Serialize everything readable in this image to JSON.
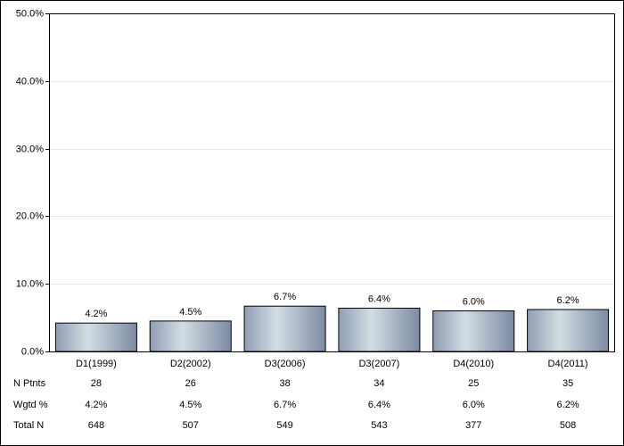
{
  "chart_data": {
    "type": "bar",
    "categories": [
      "D1(1999)",
      "D2(2002)",
      "D3(2006)",
      "D3(2007)",
      "D4(2010)",
      "D4(2011)"
    ],
    "values": [
      4.2,
      4.5,
      6.7,
      6.4,
      6.0,
      6.2
    ],
    "value_labels": [
      "4.2%",
      "4.5%",
      "6.7%",
      "6.4%",
      "6.0%",
      "6.2%"
    ],
    "ylim": [
      0,
      50
    ],
    "yticks": [
      {
        "value": 0,
        "label": "0.0%"
      },
      {
        "value": 10,
        "label": "10.0%"
      },
      {
        "value": 20,
        "label": "20.0%"
      },
      {
        "value": 30,
        "label": "30.0%"
      },
      {
        "value": 40,
        "label": "40.0%"
      },
      {
        "value": 50,
        "label": "50.0%"
      }
    ],
    "grid": true,
    "table": {
      "rows": [
        {
          "label": "N Ptnts",
          "values": [
            28,
            26,
            38,
            34,
            25,
            35
          ]
        },
        {
          "label": "Wgtd %",
          "values": [
            "4.2%",
            "4.5%",
            "6.7%",
            "6.4%",
            "6.0%",
            "6.2%"
          ]
        },
        {
          "label": "Total N",
          "values": [
            648,
            507,
            549,
            543,
            377,
            508
          ]
        }
      ]
    }
  }
}
